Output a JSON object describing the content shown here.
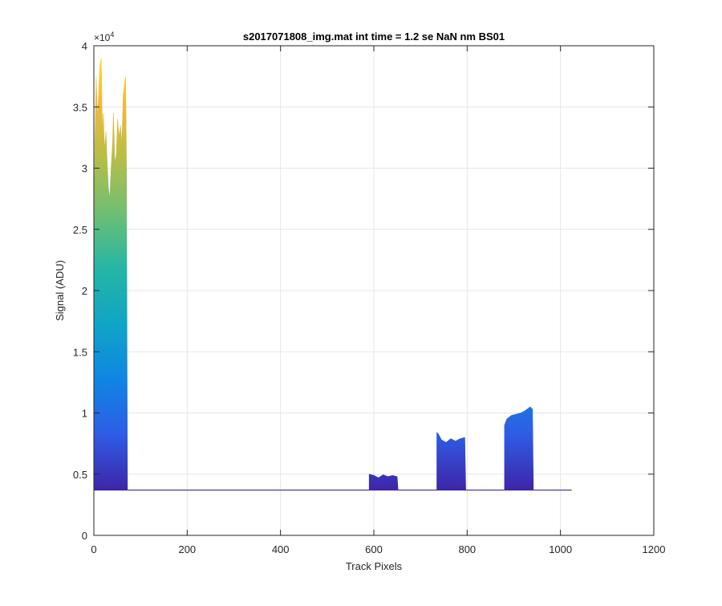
{
  "chart_data": {
    "type": "area",
    "title": "s2017071808_img.mat int time = 1.2 se  NaN nm BS01",
    "xlabel": "Track Pixels",
    "ylabel": "Signal (ADU)",
    "xlim": [
      0,
      1200
    ],
    "ylim": [
      0,
      40000
    ],
    "xticks": [
      0,
      200,
      400,
      600,
      800,
      1000,
      1200
    ],
    "xtick_labels": [
      "0",
      "200",
      "400",
      "600",
      "800",
      "1000",
      "1200"
    ],
    "yticks": [
      0,
      5000,
      10000,
      15000,
      20000,
      25000,
      30000,
      35000,
      40000
    ],
    "ytick_labels": [
      "0",
      "0.5",
      "1",
      "1.5",
      "2",
      "2.5",
      "3",
      "3.5",
      "4"
    ],
    "y_exponent_label": "×10",
    "y_exponent_power": "4",
    "grid": true,
    "colormap": "parula",
    "colormap_stops": [
      "#3e26a8",
      "#2e5ce5",
      "#0f86e3",
      "#10a5c5",
      "#27b5a5",
      "#6fbf72",
      "#b8bd48",
      "#f4b93a",
      "#f9e72a"
    ],
    "baseline": 3700,
    "x_max": 1024,
    "series": [
      {
        "x": [
          0,
          2,
          5,
          8,
          10,
          13,
          16,
          18,
          20,
          23,
          26,
          28,
          31,
          34,
          37,
          40,
          42,
          45,
          48,
          51,
          54,
          57,
          60,
          63,
          66,
          68,
          70,
          72
        ],
        "y": [
          22000,
          32000,
          37500,
          34000,
          36000,
          38500,
          39000,
          33000,
          34500,
          31500,
          33000,
          31000,
          28500,
          27500,
          30000,
          32000,
          34500,
          30500,
          31000,
          34000,
          32500,
          33500,
          32000,
          36000,
          37000,
          37500,
          30000,
          3700
        ]
      },
      {
        "x": [
          590,
          600,
          610,
          620,
          630,
          640,
          650,
          652
        ],
        "y": [
          5000,
          4900,
          4700,
          4950,
          4800,
          4900,
          4800,
          3700
        ]
      },
      {
        "x": [
          735,
          738,
          745,
          755,
          765,
          775,
          785,
          795,
          797
        ],
        "y": [
          8400,
          8300,
          7800,
          7600,
          7900,
          7700,
          7900,
          8000,
          3700
        ]
      },
      {
        "x": [
          880,
          885,
          895,
          905,
          915,
          925,
          935,
          940,
          942
        ],
        "y": [
          9000,
          9500,
          9800,
          9900,
          10000,
          10200,
          10500,
          10300,
          3700
        ]
      }
    ]
  }
}
